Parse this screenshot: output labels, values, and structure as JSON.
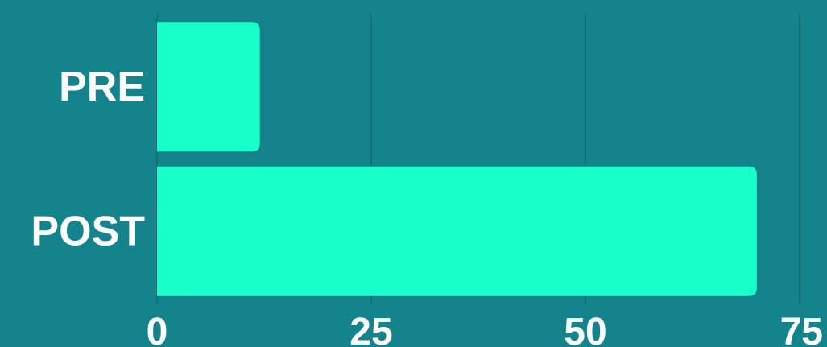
{
  "colors": {
    "background": "#15838c",
    "bar": "#19ffcb",
    "grid": "#127279",
    "text": "#ffffff"
  },
  "chart_data": {
    "type": "bar",
    "orientation": "horizontal",
    "categories": [
      "PRE",
      "POST"
    ],
    "values": [
      12,
      70
    ],
    "xlim": [
      0,
      75
    ],
    "xticks": [
      0,
      25,
      50,
      75
    ],
    "xtick_labels": [
      "0",
      "25",
      "50",
      "75"
    ],
    "grid": "vertical",
    "legend": "none",
    "title": "",
    "xlabel": "",
    "ylabel": ""
  }
}
